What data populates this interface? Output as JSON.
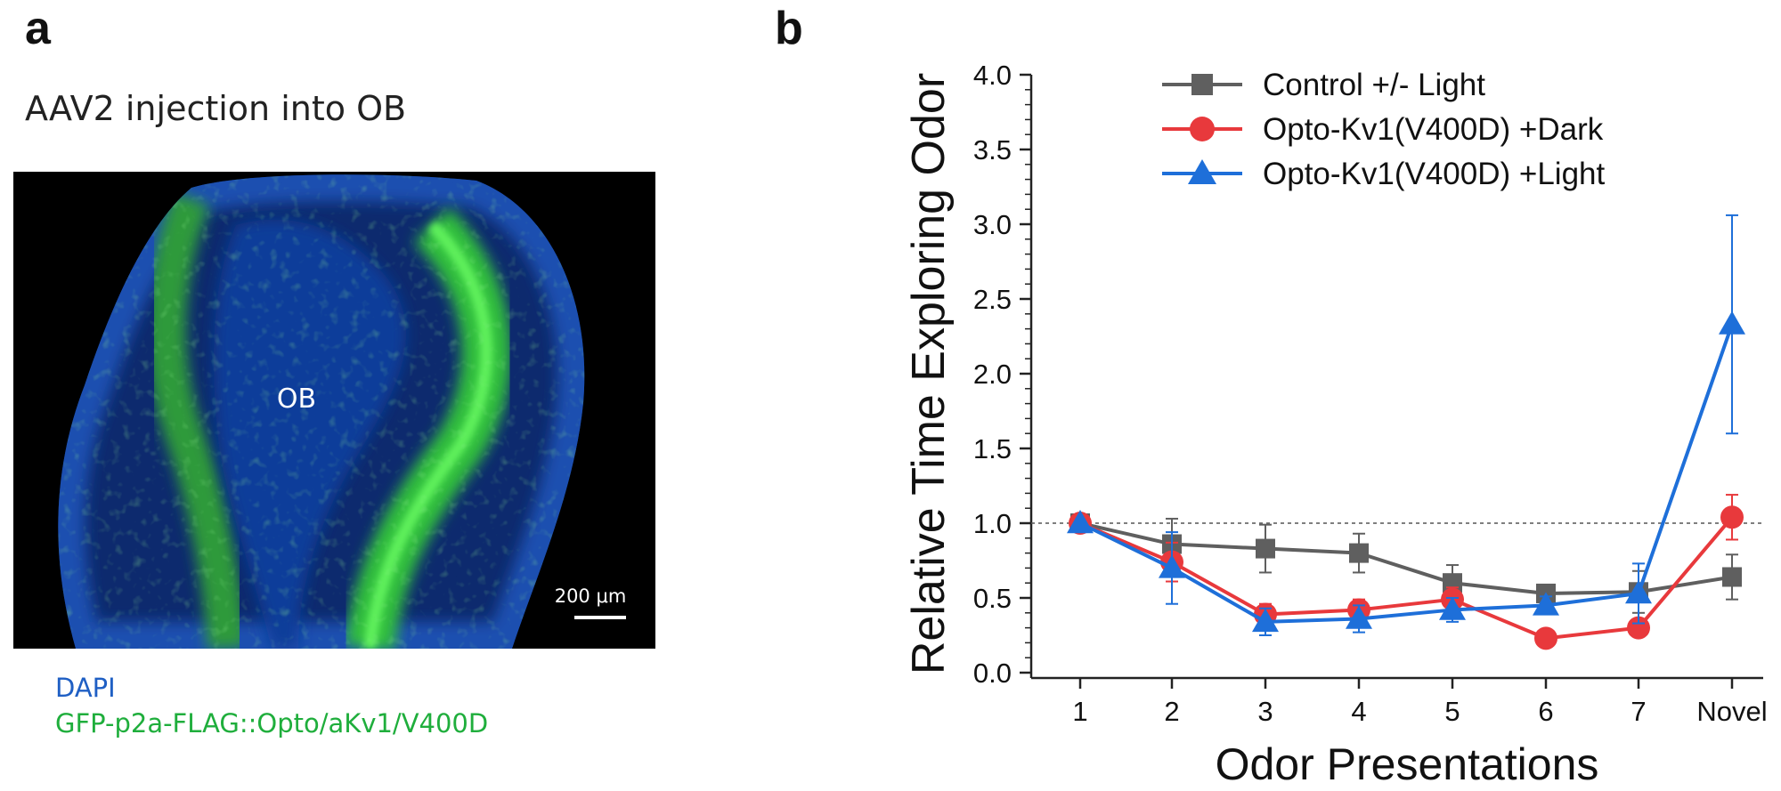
{
  "panel_a": {
    "label": "a",
    "title": "AAV2 injection into OB",
    "image_label": "OB",
    "scale_bar": "200 μm",
    "legend": {
      "dapi": "DAPI",
      "gfp": "GFP-p2a-FLAG::Opto/aKv1/V400D",
      "dapi_color": "#1f5fc4",
      "gfp_color": "#1fae3c"
    }
  },
  "panel_b": {
    "label": "b"
  },
  "chart_data": {
    "type": "line",
    "xlabel": "Odor Presentations",
    "ylabel": "Relative Time Exploring Odor",
    "categories": [
      "1",
      "2",
      "3",
      "4",
      "5",
      "6",
      "7",
      "Novel"
    ],
    "ylim": [
      0,
      4
    ],
    "yticks": [
      "0.0",
      "0.5",
      "1.0",
      "1.5",
      "2.0",
      "2.5",
      "3.0",
      "3.5",
      "4.0"
    ],
    "reference_line": 1.0,
    "legend_position": "top-left",
    "grid": false,
    "series": [
      {
        "name": "Control +/- Light",
        "color": "#5f5f5f",
        "marker": "square",
        "values": [
          1.0,
          0.86,
          0.83,
          0.8,
          0.6,
          0.53,
          0.54,
          0.64
        ],
        "error": [
          0,
          0.17,
          0.16,
          0.13,
          0.12,
          0.05,
          0.14,
          0.15
        ]
      },
      {
        "name": "Opto-Kv1(V400D) +Dark",
        "color": "#e8393c",
        "marker": "circle",
        "values": [
          1.0,
          0.74,
          0.39,
          0.42,
          0.49,
          0.23,
          0.3,
          1.04
        ],
        "error": [
          0,
          0.13,
          0.07,
          0.07,
          0.08,
          0.03,
          0.05,
          0.15
        ]
      },
      {
        "name": "Opto-Kv1(V400D) +Light",
        "color": "#1e6fd9",
        "marker": "triangle",
        "values": [
          1.0,
          0.7,
          0.34,
          0.36,
          0.42,
          0.45,
          0.53,
          2.33
        ],
        "error": [
          0,
          0.24,
          0.09,
          0.09,
          0.08,
          0.06,
          0.2,
          0.73
        ]
      }
    ]
  }
}
